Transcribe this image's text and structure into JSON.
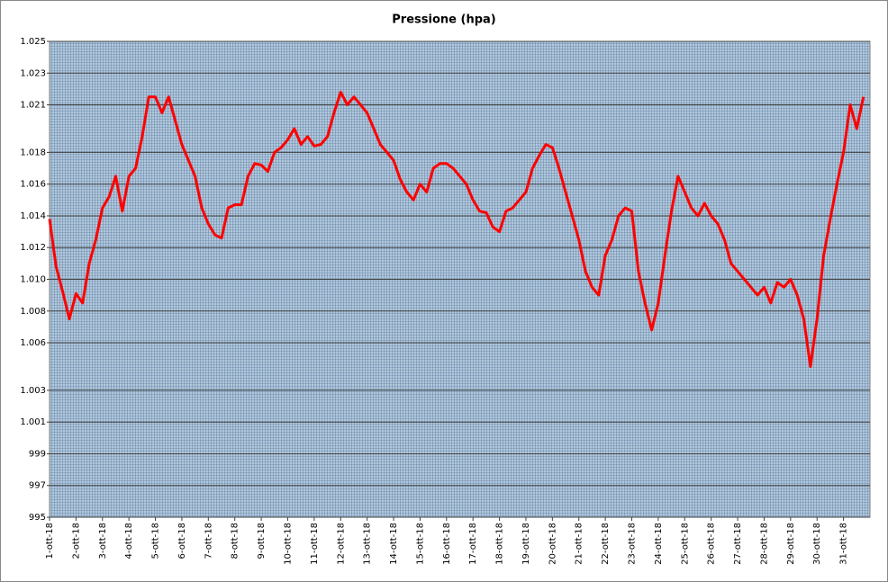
{
  "chart_data": {
    "type": "line",
    "title": "Pressione (hpa)",
    "x": [
      0,
      0.25,
      0.5,
      0.75,
      1,
      1.25,
      1.5,
      1.75,
      2,
      2.25,
      2.5,
      2.75,
      3,
      3.25,
      3.5,
      3.75,
      4,
      4.25,
      4.5,
      4.75,
      5,
      5.25,
      5.5,
      5.75,
      6,
      6.25,
      6.5,
      6.75,
      7,
      7.25,
      7.5,
      7.75,
      8,
      8.25,
      8.5,
      8.75,
      9,
      9.25,
      9.5,
      9.75,
      10,
      10.25,
      10.5,
      10.75,
      11,
      11.25,
      11.5,
      11.75,
      12,
      12.25,
      12.5,
      12.75,
      13,
      13.25,
      13.5,
      13.75,
      14,
      14.25,
      14.5,
      14.75,
      15,
      15.25,
      15.5,
      15.75,
      16,
      16.25,
      16.5,
      16.75,
      17,
      17.25,
      17.5,
      17.75,
      18,
      18.25,
      18.5,
      18.75,
      19,
      19.25,
      19.5,
      19.75,
      20,
      20.25,
      20.5,
      20.75,
      21,
      21.25,
      21.5,
      21.75,
      22,
      22.25,
      22.5,
      22.75,
      23,
      23.25,
      23.5,
      23.75,
      24,
      24.25,
      24.5,
      24.75,
      25,
      25.25,
      25.5,
      25.75,
      26,
      26.25,
      26.5,
      26.75,
      27,
      27.25,
      27.5,
      27.75,
      28,
      28.25,
      28.5,
      28.75,
      29,
      29.25,
      29.5,
      29.75,
      30,
      30.25,
      30.5,
      30.75
    ],
    "series": [
      {
        "color": "#ff0000",
        "values": [
          1013.8,
          1010.8,
          1009.2,
          1007.5,
          1009.1,
          1008.5,
          1011,
          1012.5,
          1014.5,
          1015.2,
          1016.5,
          1014.3,
          1016.5,
          1017,
          1019,
          1021.5,
          1021.5,
          1020.5,
          1021.5,
          1020,
          1018.5,
          1017.5,
          1016.5,
          1014.5,
          1013.5,
          1012.8,
          1012.6,
          1014.5,
          1014.7,
          1014.7,
          1016.5,
          1017.3,
          1017.2,
          1016.8,
          1018,
          1018.3,
          1018.8,
          1019.5,
          1018.5,
          1019,
          1018.4,
          1018.5,
          1019,
          1020.5,
          1021.8,
          1021,
          1021.5,
          1021,
          1020.5,
          1019.5,
          1018.5,
          1018,
          1017.5,
          1016.3,
          1015.5,
          1015,
          1016,
          1015.5,
          1017,
          1017.3,
          1017.3,
          1017,
          1016.5,
          1016,
          1015,
          1014.3,
          1014.2,
          1013.3,
          1013,
          1014.3,
          1014.5,
          1015,
          1015.5,
          1017,
          1017.8,
          1018.5,
          1018.3,
          1017,
          1015.5,
          1014,
          1012.5,
          1010.5,
          1009.5,
          1009,
          1011.5,
          1012.5,
          1014,
          1014.5,
          1014.3,
          1010.5,
          1008.5,
          1006.8,
          1008.5,
          1011.5,
          1014.3,
          1016.5,
          1015.5,
          1014.5,
          1014,
          1014.8,
          1014,
          1013.5,
          1012.5,
          1011,
          1010.5,
          1010,
          1009.5,
          1009,
          1009.5,
          1008.5,
          1009.8,
          1009.5,
          1010,
          1009,
          1007.5,
          1004.5,
          1007.5,
          1011.5,
          1013.8,
          1016,
          1018,
          1021,
          1019.5,
          1021.5
        ]
      }
    ],
    "xlim": [
      0,
      31
    ],
    "xticks": [
      {
        "value": 0,
        "label": "1-ott-18"
      },
      {
        "value": 1,
        "label": "2-ott-18"
      },
      {
        "value": 2,
        "label": "3-ott-18"
      },
      {
        "value": 3,
        "label": "4-ott-18"
      },
      {
        "value": 4,
        "label": "5-ott-18"
      },
      {
        "value": 5,
        "label": "6-ott-18"
      },
      {
        "value": 6,
        "label": "7-ott-18"
      },
      {
        "value": 7,
        "label": "8-ott-18"
      },
      {
        "value": 8,
        "label": "9-ott-18"
      },
      {
        "value": 9,
        "label": "10-ott-18"
      },
      {
        "value": 10,
        "label": "11-ott-18"
      },
      {
        "value": 11,
        "label": "12-ott-18"
      },
      {
        "value": 12,
        "label": "13-ott-18"
      },
      {
        "value": 13,
        "label": "14-ott-18"
      },
      {
        "value": 14,
        "label": "15-ott-18"
      },
      {
        "value": 15,
        "label": "16-ott-18"
      },
      {
        "value": 16,
        "label": "17-ott-18"
      },
      {
        "value": 17,
        "label": "18-ott-18"
      },
      {
        "value": 18,
        "label": "19-ott-18"
      },
      {
        "value": 19,
        "label": "20-ott-18"
      },
      {
        "value": 20,
        "label": "21-ott-18"
      },
      {
        "value": 21,
        "label": "22-ott-18"
      },
      {
        "value": 22,
        "label": "23-ott-18"
      },
      {
        "value": 23,
        "label": "24-ott-18"
      },
      {
        "value": 24,
        "label": "25-ott-18"
      },
      {
        "value": 25,
        "label": "26-ott-18"
      },
      {
        "value": 26,
        "label": "27-ott-18"
      },
      {
        "value": 27,
        "label": "28-ott-18"
      },
      {
        "value": 28,
        "label": "29-ott-18"
      },
      {
        "value": 29,
        "label": "30-ott-18"
      },
      {
        "value": 30,
        "label": "31-ott-18"
      }
    ],
    "ylim": [
      995,
      1025
    ],
    "yticks": [
      995,
      997,
      999,
      {
        "value": 1001,
        "label": "1.001"
      },
      {
        "value": 1003,
        "label": "1.003"
      },
      {
        "value": 1006,
        "label": "1.006"
      },
      {
        "value": 1008,
        "label": "1.008"
      },
      {
        "value": 1010,
        "label": "1.010"
      },
      {
        "value": 1012,
        "label": "1.012"
      },
      {
        "value": 1014,
        "label": "1.014"
      },
      {
        "value": 1016,
        "label": "1.016"
      },
      {
        "value": 1018,
        "label": "1.018"
      },
      {
        "value": 1021,
        "label": "1.021"
      },
      {
        "value": 1023,
        "label": "1.023"
      },
      {
        "value": 1025,
        "label": "1.025"
      }
    ],
    "grid": true
  }
}
